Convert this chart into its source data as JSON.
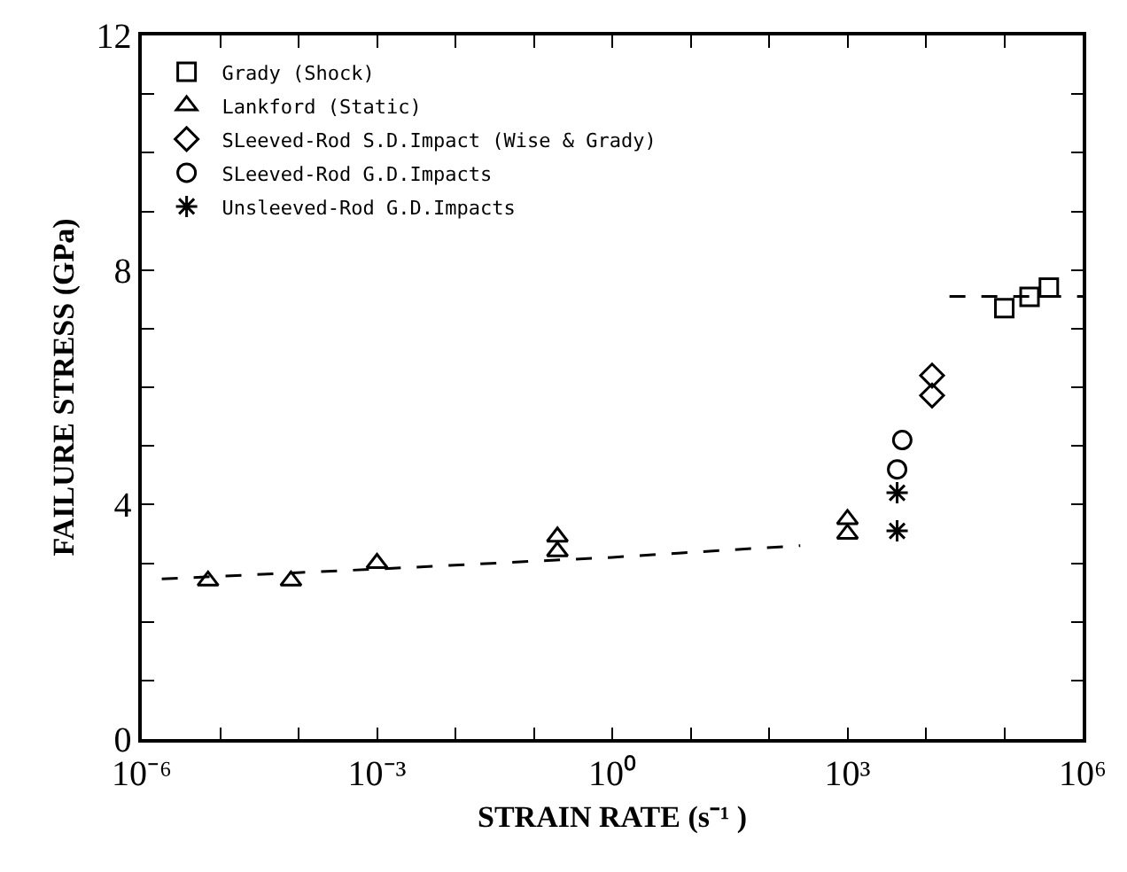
{
  "chart_data": {
    "type": "scatter",
    "xlabel": "STRAIN RATE (s⁻¹ )",
    "ylabel": "FAILURE STRESS (GPa)",
    "log": "x",
    "xlim": [
      1e-06,
      1000000.0
    ],
    "xticks": [
      {
        "value": 1e-06,
        "label": "10⁻⁶"
      },
      {
        "value": 1e-05,
        "label": null
      },
      {
        "value": 0.0001,
        "label": null
      },
      {
        "value": 0.001,
        "label": "10⁻³"
      },
      {
        "value": 0.01,
        "label": null
      },
      {
        "value": 0.1,
        "label": null
      },
      {
        "value": 1,
        "label": "10⁰"
      },
      {
        "value": 10,
        "label": null
      },
      {
        "value": 100,
        "label": null
      },
      {
        "value": 1000,
        "label": "10³"
      },
      {
        "value": 10000,
        "label": null
      },
      {
        "value": 100000,
        "label": null
      },
      {
        "value": 1000000,
        "label": "10⁶"
      }
    ],
    "ylim": [
      0,
      12
    ],
    "yticks": [
      0,
      {
        "value": 1,
        "label": null
      },
      {
        "value": 2,
        "label": null
      },
      {
        "value": 3,
        "label": null
      },
      4,
      {
        "value": 5,
        "label": null
      },
      {
        "value": 6,
        "label": null
      },
      {
        "value": 7,
        "label": null
      },
      8,
      {
        "value": 9,
        "label": null
      },
      {
        "value": 10,
        "label": null
      },
      {
        "value": 11,
        "label": null
      },
      12
    ],
    "grid": false,
    "legend": "top left",
    "series": [
      {
        "name": "Grady (Shock)",
        "color": "#000000",
        "marker": "square",
        "x": [
          100000,
          210000,
          370000
        ],
        "values": [
          7.35,
          7.54,
          7.7
        ]
      },
      {
        "name": "Lankford (Static)",
        "color": "#000000",
        "marker": "triangle",
        "x": [
          7e-06,
          8e-05,
          0.001,
          0.2,
          0.2,
          1000,
          1000
        ],
        "values": [
          2.7,
          2.7,
          3.0,
          3.45,
          3.2,
          3.75,
          3.5
        ]
      },
      {
        "name": "SLeeved-Rod S.D.Impact (Wise & Grady)",
        "color": "#000000",
        "marker": "diamond",
        "x": [
          12000,
          12000
        ],
        "values": [
          6.2,
          5.86
        ]
      },
      {
        "name": "SLeeved-Rod G.D.Impacts",
        "color": "#000000",
        "marker": "circle",
        "x": [
          5000,
          4300
        ],
        "values": [
          5.1,
          4.6
        ]
      },
      {
        "name": "Unsleeved-Rod G.D.Impacts",
        "color": "#000000",
        "marker": "cross",
        "x": [
          4300,
          4300
        ],
        "values": [
          4.2,
          3.55
        ]
      },
      {
        "type": "line",
        "color": "#000000",
        "marker": "none",
        "line_style": "dashed",
        "x": [
          1.8e-06,
          0.001,
          1,
          250,
          null,
          20000,
          1000000
        ],
        "values": [
          2.73,
          2.9,
          3.1,
          3.3,
          null,
          7.55,
          7.55
        ]
      }
    ]
  }
}
